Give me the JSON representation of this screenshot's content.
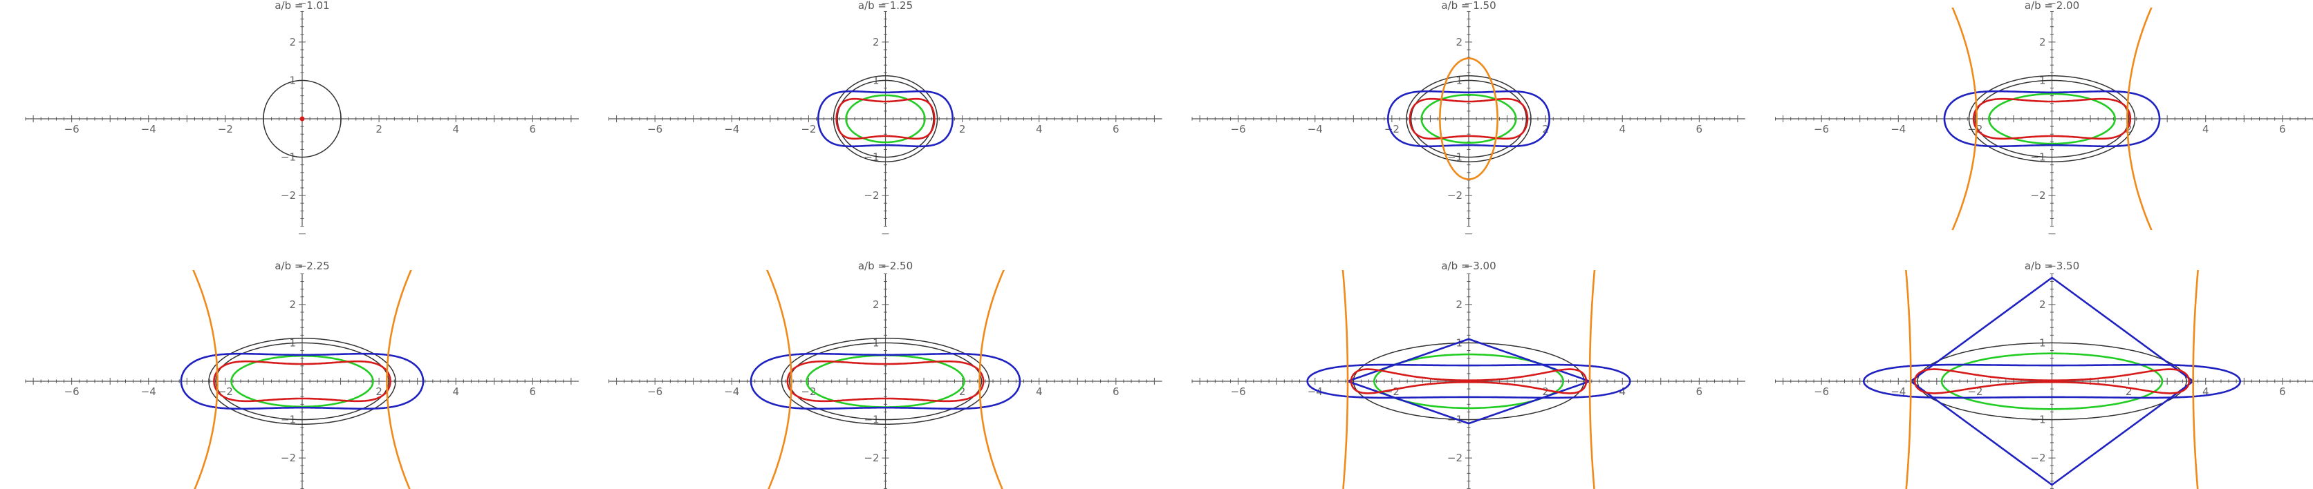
{
  "chart_data": [
    {
      "type": "line",
      "title": "a/b = 1.01",
      "ratio": 1.01,
      "b": 1.0,
      "xlim": [
        -7.2,
        7.2
      ],
      "ylim": [
        -3.2,
        3.2
      ],
      "grid": false,
      "x_ticks": [
        -6,
        -4,
        -2,
        2,
        4,
        6
      ],
      "x_tick_labels": [
        "−6",
        "−4",
        "−2",
        "2",
        "4",
        "6"
      ],
      "y_ticks": [
        -2,
        -1,
        1,
        2
      ],
      "y_tick_labels": [
        "−2",
        "−1",
        "1",
        "2"
      ]
    },
    {
      "type": "line",
      "title": "a/b = 1.25",
      "ratio": 1.25,
      "b": 1.0,
      "xlim": [
        -7.2,
        7.2
      ],
      "ylim": [
        -3.2,
        3.2
      ],
      "grid": false,
      "x_ticks": [
        -6,
        -4,
        -2,
        2,
        4,
        6
      ],
      "x_tick_labels": [
        "−6",
        "−4",
        "−2",
        "2",
        "4",
        "6"
      ],
      "y_ticks": [
        -2,
        -1,
        1,
        2
      ],
      "y_tick_labels": [
        "−2",
        "−1",
        "1",
        "2"
      ]
    },
    {
      "type": "line",
      "title": "a/b = 1.50",
      "ratio": 1.5,
      "b": 1.0,
      "xlim": [
        -7.2,
        7.2
      ],
      "ylim": [
        -3.2,
        3.2
      ],
      "grid": false,
      "x_ticks": [
        -6,
        -4,
        -2,
        2,
        4,
        6
      ],
      "x_tick_labels": [
        "−6",
        "−4",
        "−2",
        "2",
        "4",
        "6"
      ],
      "y_ticks": [
        -2,
        -1,
        1,
        2
      ],
      "y_tick_labels": [
        "−2",
        "−1",
        "1",
        "2"
      ]
    },
    {
      "type": "line",
      "title": "a/b = 2.00",
      "ratio": 2.0,
      "b": 1.0,
      "xlim": [
        -7.2,
        7.2
      ],
      "ylim": [
        -3.2,
        3.2
      ],
      "grid": false,
      "x_ticks": [
        -6,
        -4,
        -2,
        2,
        4,
        6
      ],
      "x_tick_labels": [
        "−6",
        "−4",
        "−2",
        "2",
        "4",
        "6"
      ],
      "y_ticks": [
        -2,
        -1,
        1,
        2
      ],
      "y_tick_labels": [
        "−2",
        "−1",
        "1",
        "2"
      ]
    },
    {
      "type": "line",
      "title": "a/b = 2.25",
      "ratio": 2.25,
      "b": 1.0,
      "xlim": [
        -7.2,
        7.2
      ],
      "ylim": [
        -3.2,
        3.2
      ],
      "grid": false,
      "x_ticks": [
        -6,
        -4,
        -2,
        2,
        4,
        6
      ],
      "x_tick_labels": [
        "−6",
        "−4",
        "−2",
        "2",
        "4",
        "6"
      ],
      "y_ticks": [
        -2,
        -1,
        1,
        2
      ],
      "y_tick_labels": [
        "−2",
        "−1",
        "1",
        "2"
      ]
    },
    {
      "type": "line",
      "title": "a/b = 2.50",
      "ratio": 2.5,
      "b": 1.0,
      "xlim": [
        -7.2,
        7.2
      ],
      "ylim": [
        -3.2,
        3.2
      ],
      "grid": false,
      "x_ticks": [
        -6,
        -4,
        -2,
        2,
        4,
        6
      ],
      "x_tick_labels": [
        "−6",
        "−4",
        "−2",
        "2",
        "4",
        "6"
      ],
      "y_ticks": [
        -2,
        -1,
        1,
        2
      ],
      "y_tick_labels": [
        "−2",
        "−1",
        "1",
        "2"
      ]
    },
    {
      "type": "line",
      "title": "a/b = 3.00",
      "ratio": 3.0,
      "b": 1.0,
      "xlim": [
        -7.2,
        7.2
      ],
      "ylim": [
        -3.2,
        3.2
      ],
      "grid": false,
      "x_ticks": [
        -6,
        -4,
        -2,
        2,
        4,
        6
      ],
      "x_tick_labels": [
        "−6",
        "−4",
        "−2",
        "2",
        "4",
        "6"
      ],
      "y_ticks": [
        -2,
        -1,
        1,
        2
      ],
      "y_tick_labels": [
        "−2",
        "−1",
        "1",
        "2"
      ]
    },
    {
      "type": "line",
      "title": "a/b = 3.50",
      "ratio": 3.5,
      "b": 1.0,
      "xlim": [
        -7.2,
        7.2
      ],
      "ylim": [
        -3.2,
        3.2
      ],
      "grid": false,
      "x_ticks": [
        -6,
        -4,
        -2,
        2,
        4,
        6
      ],
      "x_tick_labels": [
        "−6",
        "−4",
        "−2",
        "2",
        "4",
        "6"
      ],
      "y_ticks": [
        -2,
        -1,
        1,
        2
      ],
      "y_tick_labels": [
        "−2",
        "−1",
        "1",
        "2"
      ]
    }
  ],
  "colors": {
    "ellipse": "#333333",
    "green": "#22cc22",
    "blue": "#1f22c0",
    "red": "#d61a1a",
    "orange": "#f08a1a",
    "axis": "#555555",
    "background": "#ffffff"
  }
}
